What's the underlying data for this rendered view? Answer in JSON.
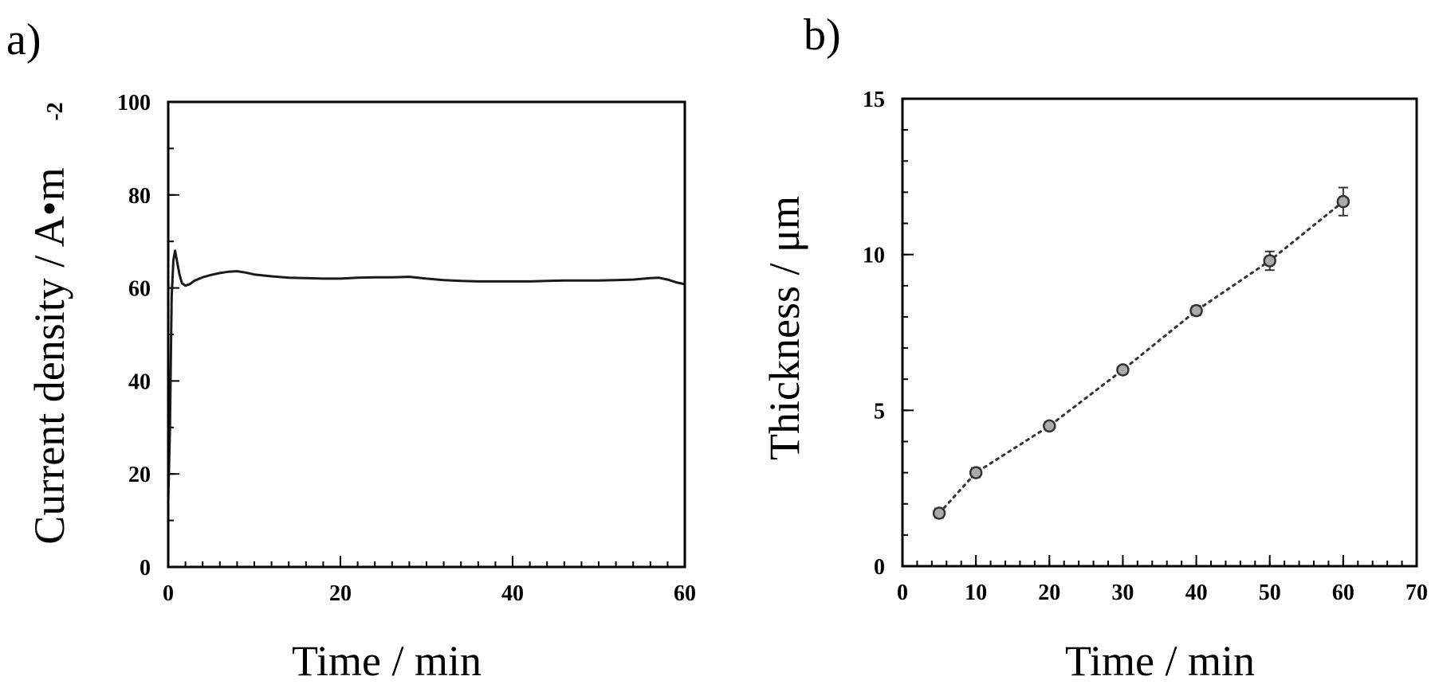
{
  "chart_data": [
    {
      "panel_label": "a)",
      "type": "line",
      "xlabel": "Time / min",
      "ylabel": "Current density / A•m",
      "ylabel_superscript": "-2",
      "xlim": [
        0,
        60
      ],
      "ylim": [
        0,
        100
      ],
      "xticks": [
        0,
        20,
        40,
        60
      ],
      "yticks": [
        0,
        20,
        40,
        60,
        80,
        100
      ],
      "grid": false,
      "series": [
        {
          "x": [
            0,
            0.2,
            0.4,
            0.6,
            0.8,
            1.0,
            1.3,
            1.6,
            2.0,
            2.5,
            3,
            4,
            5,
            6,
            7,
            8,
            9,
            10,
            12,
            14,
            16,
            18,
            20,
            22,
            24,
            26,
            28,
            30,
            32,
            34,
            36,
            38,
            40,
            42,
            44,
            46,
            48,
            50,
            52,
            54,
            56,
            57,
            58,
            59,
            60
          ],
          "y": [
            14,
            30,
            58,
            66,
            68,
            66,
            63,
            61,
            60.5,
            60.8,
            61.5,
            62.3,
            62.8,
            63.2,
            63.5,
            63.6,
            63.3,
            62.9,
            62.5,
            62.2,
            62.1,
            62,
            62,
            62.2,
            62.3,
            62.3,
            62.4,
            62,
            61.7,
            61.5,
            61.4,
            61.4,
            61.4,
            61.4,
            61.5,
            61.6,
            61.6,
            61.6,
            61.7,
            61.8,
            62.1,
            62.2,
            61.8,
            61.2,
            60.8
          ]
        }
      ]
    },
    {
      "panel_label": "b)",
      "type": "scatter",
      "xlabel": "Time / min",
      "ylabel": "Thickness / μm",
      "xlim": [
        0,
        70
      ],
      "ylim": [
        0,
        15
      ],
      "xticks": [
        0,
        10,
        20,
        30,
        40,
        50,
        60,
        70
      ],
      "yticks": [
        0,
        5,
        10,
        15
      ],
      "grid": false,
      "trendline": "dotted",
      "series": [
        {
          "x": [
            5,
            10,
            20,
            30,
            40,
            50,
            60
          ],
          "y": [
            1.7,
            3.0,
            4.5,
            6.3,
            8.2,
            9.8,
            11.7
          ],
          "error": [
            0.15,
            0.15,
            0.12,
            0.12,
            0.15,
            0.3,
            0.45
          ]
        }
      ]
    }
  ]
}
